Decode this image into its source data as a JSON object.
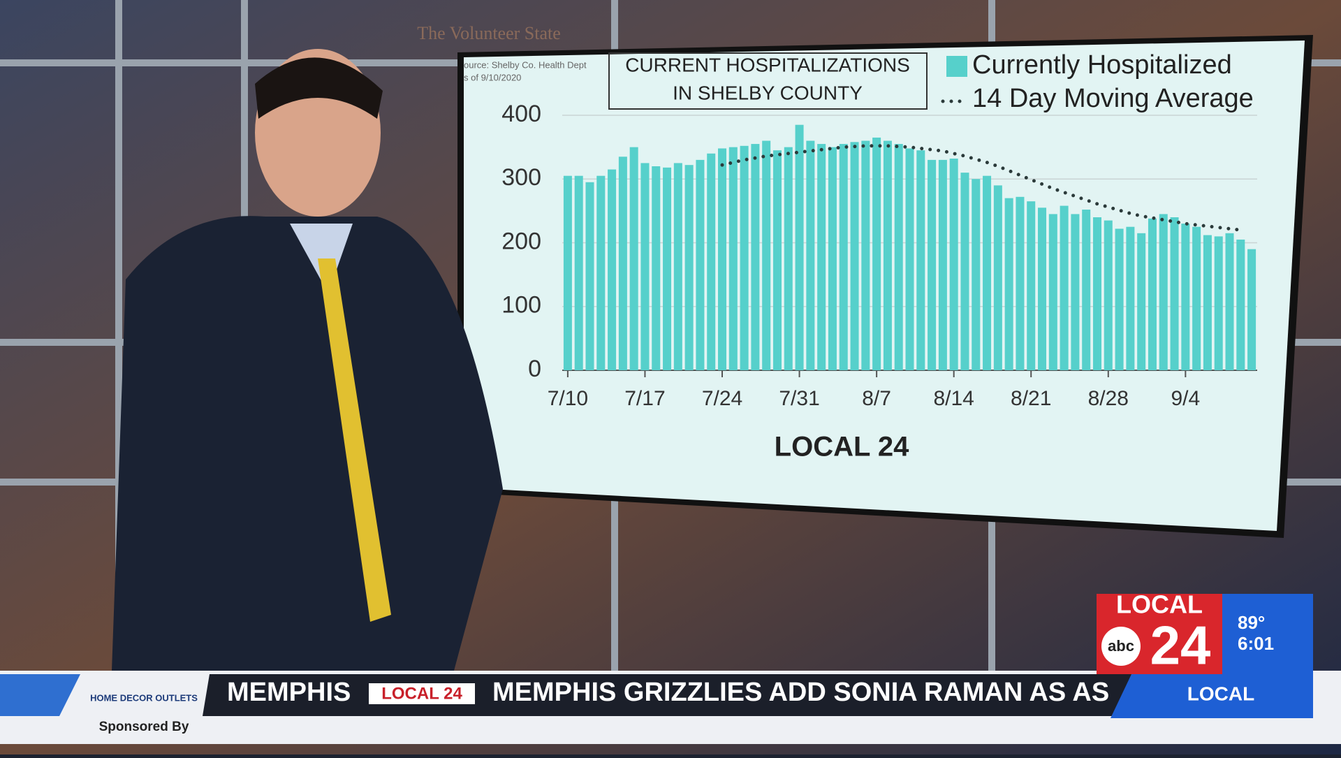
{
  "chart_data": {
    "type": "bar",
    "title": "CURRENT HOSPITALIZATIONS IN SHELBY COUNTY",
    "source": "ource: Shelby Co. Health Dept",
    "source_date": "s of 9/10/2020",
    "categories": [
      "7/10",
      null,
      null,
      null,
      null,
      null,
      null,
      "7/17",
      null,
      null,
      null,
      null,
      null,
      null,
      "7/24",
      null,
      null,
      null,
      null,
      null,
      null,
      "7/31",
      null,
      null,
      null,
      null,
      null,
      null,
      "8/7",
      null,
      null,
      null,
      null,
      null,
      null,
      "8/14",
      null,
      null,
      null,
      null,
      null,
      null,
      "8/21",
      null,
      null,
      null,
      null,
      null,
      null,
      "8/28",
      null,
      null,
      null,
      null,
      null,
      null,
      "9/4",
      null,
      null,
      null,
      null,
      null,
      null
    ],
    "series": [
      {
        "name": "Currently Hospitalized",
        "color": "#56d0cb",
        "values": [
          305,
          305,
          295,
          305,
          315,
          335,
          350,
          325,
          320,
          318,
          325,
          322,
          330,
          340,
          348,
          350,
          352,
          355,
          360,
          345,
          350,
          385,
          360,
          355,
          350,
          355,
          358,
          360,
          365,
          360,
          355,
          348,
          345,
          330,
          330,
          332,
          310,
          300,
          305,
          290,
          270,
          272,
          265,
          255,
          245,
          258,
          245,
          252,
          240,
          235,
          222,
          225,
          215,
          238,
          245,
          240,
          230,
          225,
          212,
          210,
          215,
          205,
          190
        ]
      },
      {
        "name": "14 Day Moving Average",
        "color": "#2b3a3a",
        "values": [
          null,
          null,
          null,
          null,
          null,
          null,
          null,
          null,
          null,
          null,
          null,
          null,
          null,
          null,
          322,
          326,
          330,
          333,
          336,
          338,
          340,
          342,
          344,
          346,
          348,
          350,
          351,
          352,
          352,
          352,
          351,
          350,
          348,
          346,
          344,
          340,
          336,
          331,
          326,
          320,
          313,
          306,
          299,
          292,
          285,
          279,
          273,
          267,
          261,
          256,
          251,
          246,
          242,
          239,
          236,
          233,
          230,
          228,
          226,
          224,
          222,
          220,
          null
        ]
      }
    ],
    "ylim": [
      0,
      400
    ],
    "yticks": [
      0,
      100,
      200,
      300,
      400
    ],
    "grid": true,
    "logo": "LOCAL 24"
  },
  "background_text": "The Volunteer State",
  "bug": {
    "station": "LOCAL",
    "network": "abc",
    "channel": "24",
    "temperature": "89°",
    "time": "6:01",
    "section": "LOCAL"
  },
  "ticker": {
    "sponsor": "HOME DECOR OUTLETS",
    "sponsored_by": "Sponsored By",
    "items": [
      "MEMPHIS",
      "LOCAL 24",
      "MEMPHIS GRIZZLIES ADD SONIA RAMAN AS AS"
    ]
  }
}
